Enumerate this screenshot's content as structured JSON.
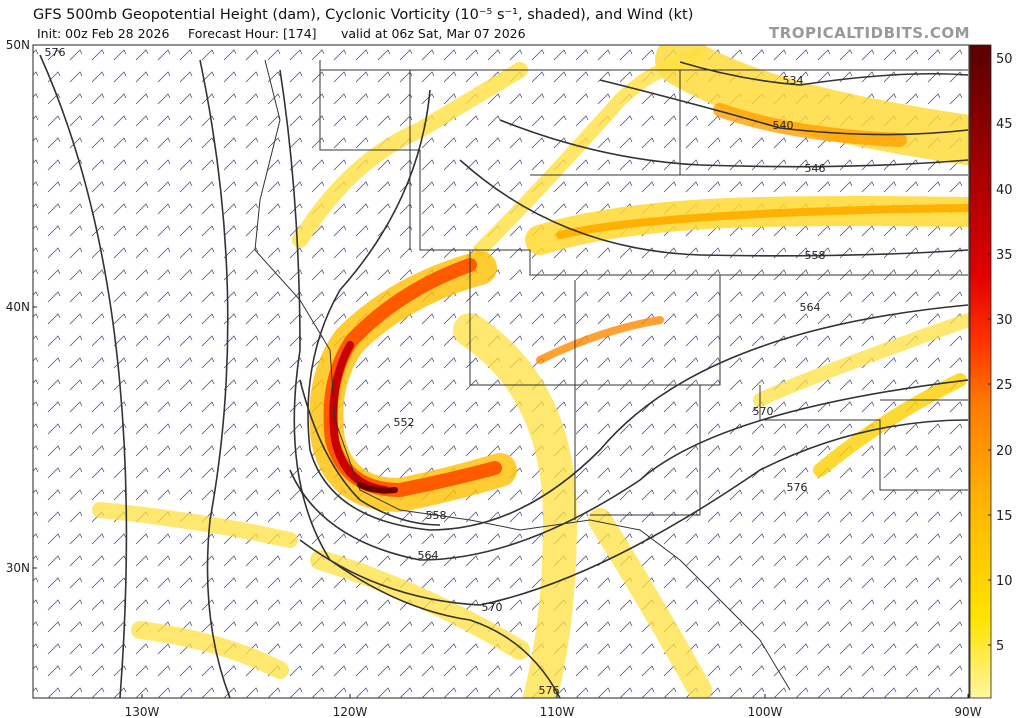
{
  "header": {
    "title": "GFS 500mb Geopotential Height (dam), Cyclonic Vorticity (10⁻⁵ s⁻¹, shaded), and Wind (kt)",
    "init": "Init: 00z Feb 28 2026",
    "forecast_hour": "Forecast Hour: [174]",
    "valid": "valid at 06z Sat, Mar 07 2026",
    "watermark": "TROPICALTIDBITS.COM"
  },
  "map": {
    "lat_labels": [
      "50N",
      "40N",
      "30N"
    ],
    "lon_labels": [
      "130W",
      "120W",
      "110W",
      "100W",
      "90W"
    ],
    "contour_labels": [
      576,
      534,
      540,
      546,
      558,
      564,
      552,
      570,
      576,
      558,
      564,
      570,
      576
    ]
  },
  "colorbar": {
    "ticks": [
      50,
      45,
      40,
      35,
      30,
      25,
      20,
      15,
      10,
      5
    ]
  }
}
